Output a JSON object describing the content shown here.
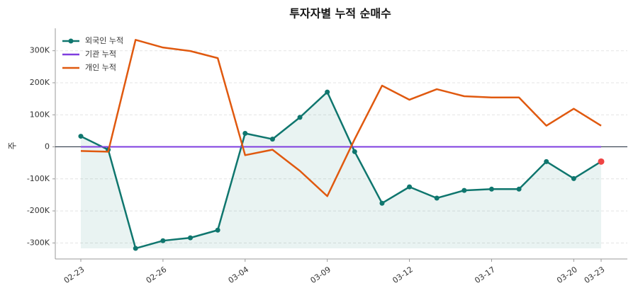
{
  "chart_data": {
    "type": "line",
    "title": "투자자별 누적 순매수",
    "y_label": "주",
    "categories": [
      "02-23",
      null,
      null,
      "02-26",
      null,
      null,
      "03-04",
      null,
      null,
      "03-09",
      null,
      null,
      "03-12",
      null,
      null,
      "03-17",
      null,
      null,
      "03-20",
      "03-23"
    ],
    "series": [
      {
        "name": "외국인 누적",
        "color": "#0f766e",
        "values": [
          33000,
          -9000,
          -317000,
          -293000,
          -284000,
          -260000,
          42000,
          24000,
          92000,
          171000,
          -15000,
          -176000,
          -125000,
          -160000,
          -136000,
          -132000,
          -132000,
          -46000,
          -99000,
          -46000
        ]
      },
      {
        "name": "기관 누적",
        "color": "#7e3ddf",
        "values": [
          0,
          0,
          0,
          0,
          0,
          0,
          0,
          0,
          0,
          0,
          0,
          0,
          0,
          0,
          0,
          0,
          0,
          0,
          0,
          0
        ]
      },
      {
        "name": "개인 누적",
        "color": "#e0590f",
        "values": [
          -13000,
          -15000,
          334000,
          310000,
          299000,
          277000,
          -26000,
          -9000,
          -75000,
          -154000,
          24000,
          191000,
          147000,
          180000,
          158000,
          154000,
          154000,
          66000,
          119000,
          66000
        ]
      }
    ],
    "ylim": [
      -350000,
      370000
    ],
    "yticks": [
      {
        "value": -300000,
        "label": "-300K"
      },
      {
        "value": -200000,
        "label": "-200K"
      },
      {
        "value": -100000,
        "label": "-100K"
      },
      0,
      {
        "value": 100000,
        "label": "100K"
      },
      {
        "value": 200000,
        "label": "200K"
      },
      {
        "value": 300000,
        "label": "300K"
      }
    ],
    "grid": true,
    "legend": "upper left"
  }
}
